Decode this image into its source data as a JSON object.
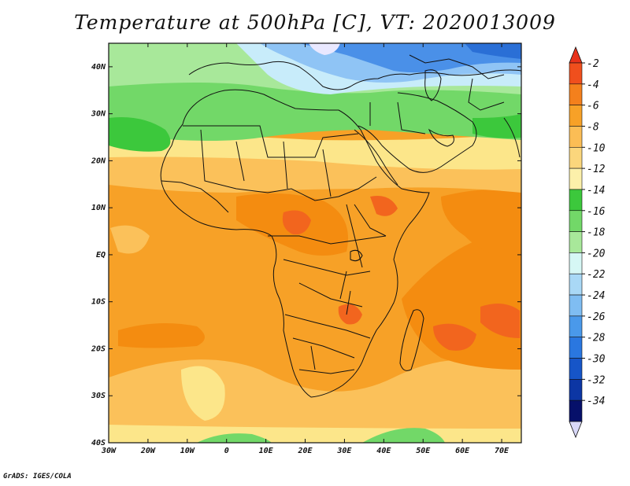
{
  "title": "Temperature at 500hPa [C], VT: 2020013009",
  "credit": "GrADS: IGES/COLA",
  "map": {
    "lon_labels": [
      "30W",
      "20W",
      "10W",
      "0",
      "10E",
      "20E",
      "30E",
      "40E",
      "50E",
      "60E",
      "70E"
    ],
    "lat_labels": [
      "40N",
      "30N",
      "20N",
      "10N",
      "EQ",
      "10S",
      "20S",
      "30S",
      "40S"
    ],
    "lon_range": [
      -30,
      75
    ],
    "lat_range": [
      -40,
      45
    ],
    "colors": {
      "blue_dark": "#2a6fd6",
      "blue": "#4a90e8",
      "blue_light": "#8fc4f5",
      "cyan_pale": "#c8ecfa",
      "green_light": "#a8e89a",
      "green": "#72d868",
      "green_dark": "#3cc83c",
      "yellow": "#fce68a",
      "orange_light": "#fbc15a",
      "orange": "#f7a127",
      "orange_dark": "#f48c10",
      "red_orange": "#f2651e"
    }
  },
  "colorbar": {
    "labels": [
      "-2",
      "-4",
      "-6",
      "-8",
      "-10",
      "-12",
      "-14",
      "-16",
      "-18",
      "-20",
      "-22",
      "-24",
      "-26",
      "-28",
      "-30",
      "-32",
      "-34"
    ],
    "colors": [
      "#f04f1d",
      "#f4801c",
      "#f7a127",
      "#fbbd55",
      "#fbd67c",
      "#fcf0aa",
      "#3cc83c",
      "#72d868",
      "#a8e89a",
      "#d6f7f5",
      "#a9d8f6",
      "#7fbdf2",
      "#4a99ea",
      "#2a77e0",
      "#1655c8",
      "#0c36a4",
      "#06106a"
    ],
    "top_color": "#e8321a",
    "bottom_color": "#d8d8f8"
  }
}
